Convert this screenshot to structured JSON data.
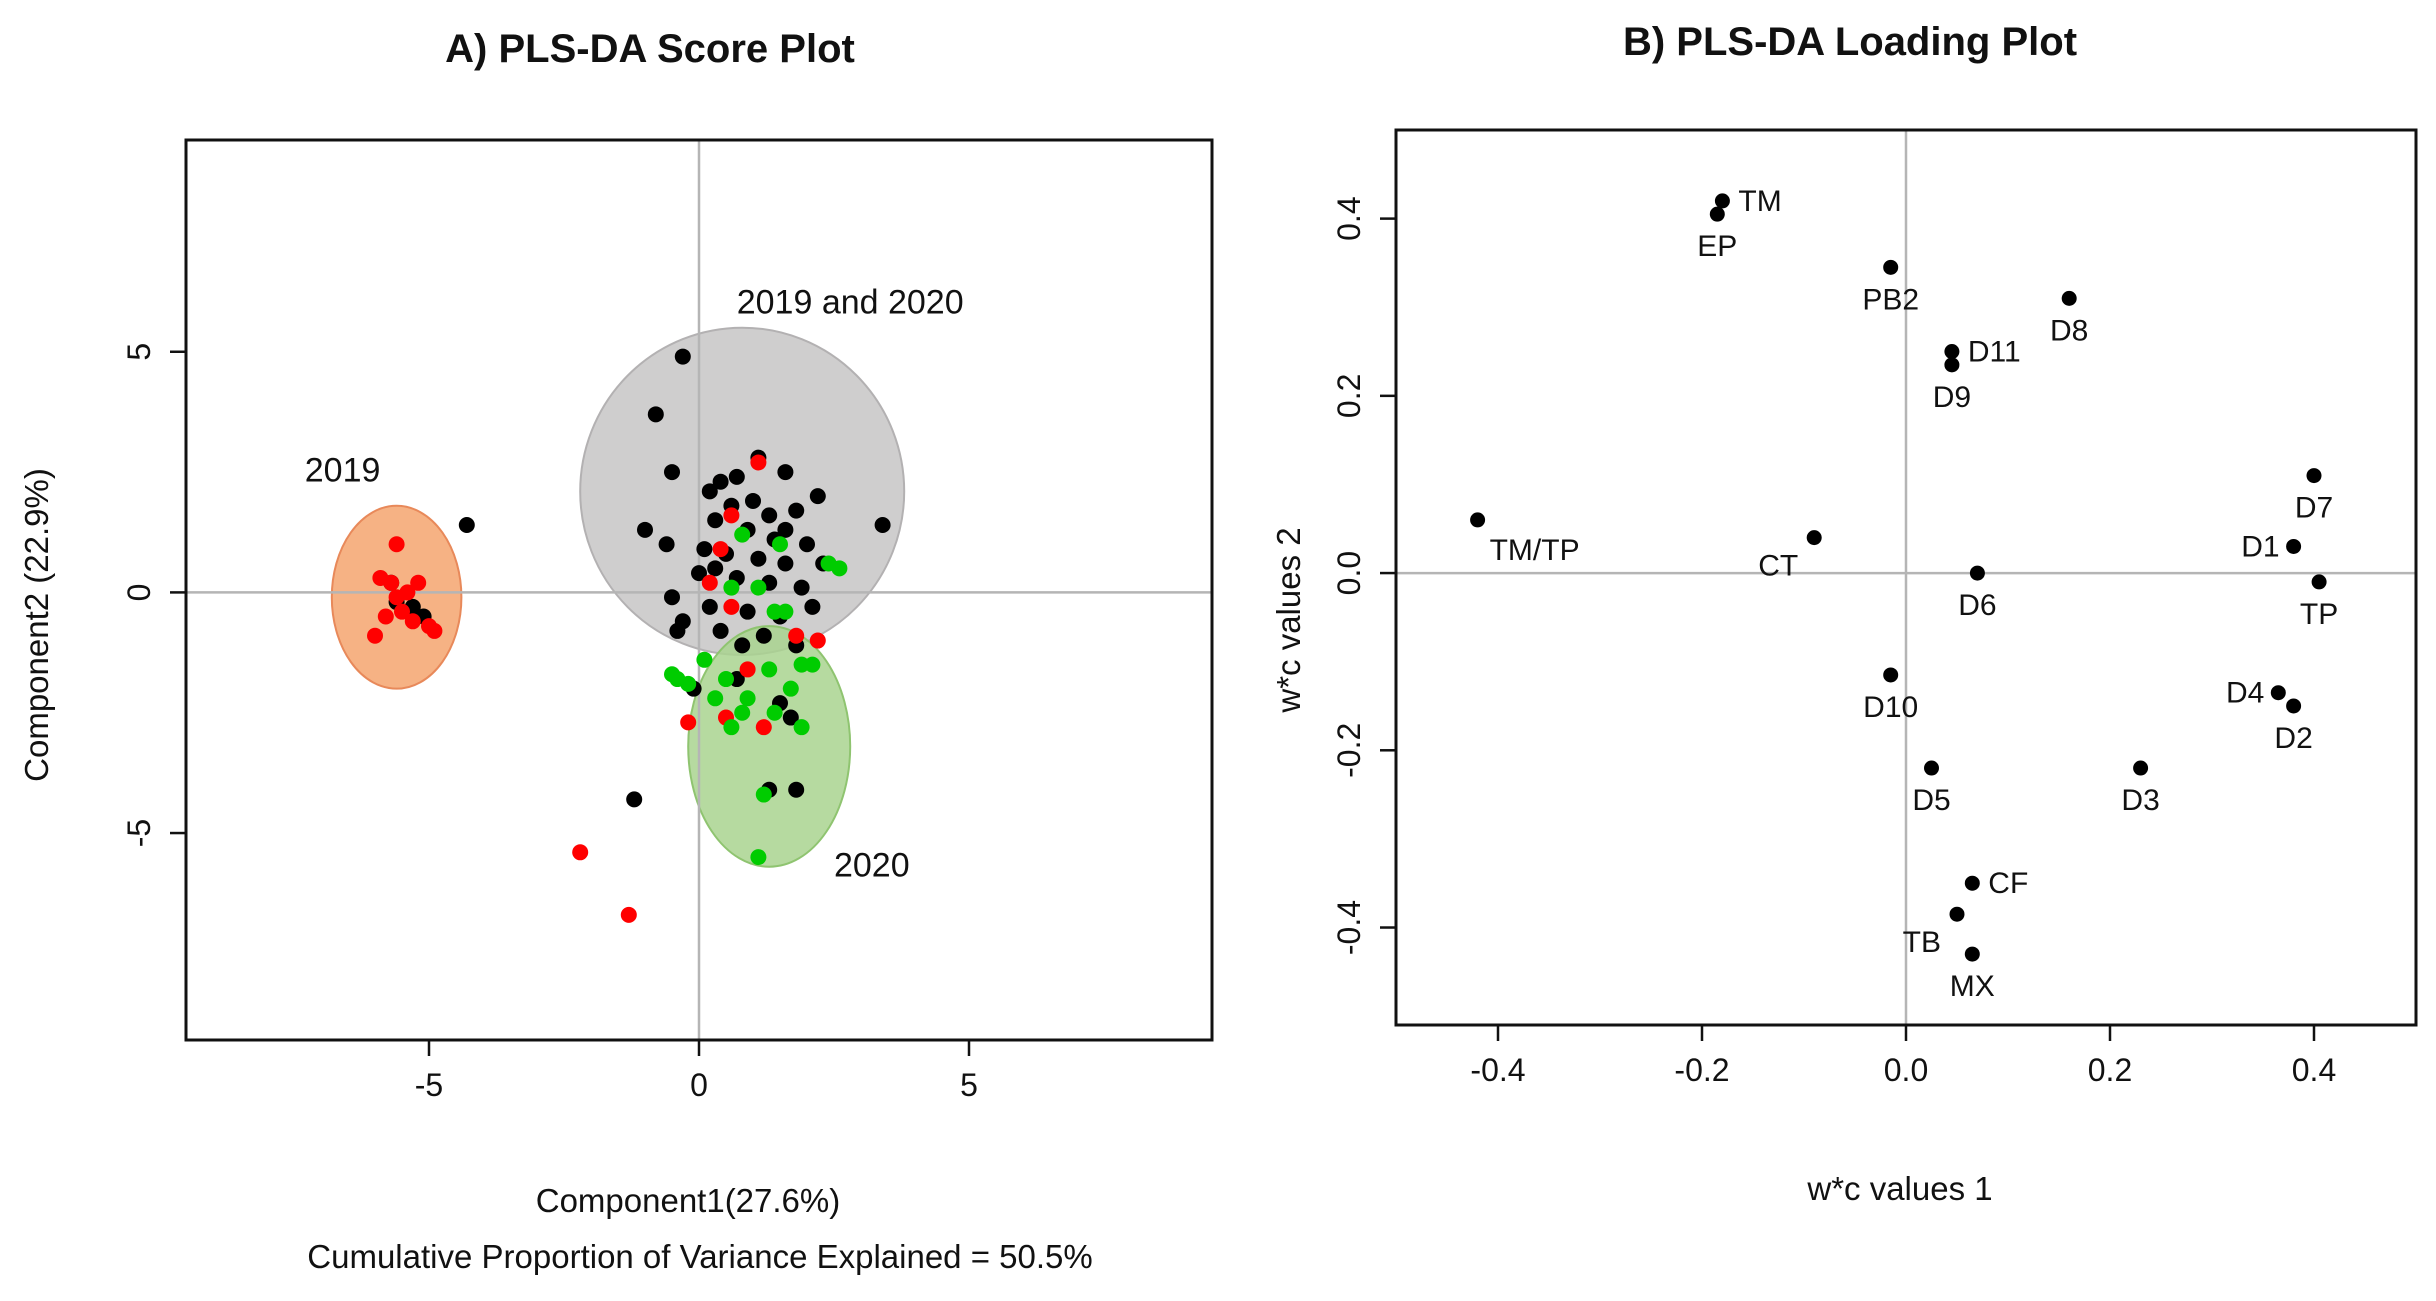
{
  "chart_data": [
    {
      "type": "scatter",
      "panel": "A",
      "title": "A) PLS-DA Score Plot",
      "xlabel": "Component1(27.6%)",
      "ylabel": "Component2 (22.9%)",
      "footnote": "Cumulative Proportion of Variance Explained = 50.5%",
      "xlim": [
        -9.5,
        9.5
      ],
      "ylim": [
        -9.3,
        9.4
      ],
      "xticks": [
        -5,
        0,
        5
      ],
      "yticks": [
        -5,
        0,
        5
      ],
      "colors": {
        "black": "#000000",
        "red": "#ff0000",
        "green": "#00cc00"
      },
      "ellipses": [
        {
          "label": "2019",
          "cx": -5.6,
          "cy": -0.1,
          "rx": 1.2,
          "ry": 1.9,
          "fill": "#f4a46e",
          "stroke": "#e8895a"
        },
        {
          "label": "2019 and 2020",
          "cx": 0.8,
          "cy": 2.1,
          "rx": 3.0,
          "ry": 3.4,
          "fill": "#c7c5c6",
          "stroke": "#b3b1b2"
        },
        {
          "label": "2020",
          "cx": 1.3,
          "cy": -3.2,
          "rx": 1.5,
          "ry": 2.5,
          "fill": "#a9d38f",
          "stroke": "#8fc470"
        }
      ],
      "group_labels": [
        {
          "text": "2019",
          "x": -6.6,
          "y": 2.3
        },
        {
          "text": "2019 and 2020",
          "x": 2.8,
          "y": 5.8
        },
        {
          "text": "2020",
          "x": 3.2,
          "y": -5.9
        }
      ],
      "series": [
        {
          "name": "black",
          "points": [
            [
              -0.3,
              4.9
            ],
            [
              -0.8,
              3.7
            ],
            [
              -0.5,
              2.5
            ],
            [
              0.4,
              2.3
            ],
            [
              0.7,
              2.4
            ],
            [
              1.1,
              2.8
            ],
            [
              1.6,
              2.5
            ],
            [
              0.2,
              2.1
            ],
            [
              0.6,
              1.8
            ],
            [
              1.0,
              1.9
            ],
            [
              1.3,
              1.6
            ],
            [
              1.8,
              1.7
            ],
            [
              2.2,
              2.0
            ],
            [
              0.3,
              1.5
            ],
            [
              0.9,
              1.3
            ],
            [
              1.4,
              1.1
            ],
            [
              2.0,
              1.0
            ],
            [
              -1.0,
              1.3
            ],
            [
              -0.6,
              1.0
            ],
            [
              0.1,
              0.9
            ],
            [
              0.5,
              0.8
            ],
            [
              1.1,
              0.7
            ],
            [
              1.6,
              0.6
            ],
            [
              2.3,
              0.6
            ],
            [
              0.0,
              0.4
            ],
            [
              0.7,
              0.3
            ],
            [
              1.3,
              0.2
            ],
            [
              1.9,
              0.1
            ],
            [
              -0.5,
              -0.1
            ],
            [
              0.2,
              -0.3
            ],
            [
              0.9,
              -0.4
            ],
            [
              1.5,
              -0.5
            ],
            [
              2.1,
              -0.3
            ],
            [
              -0.3,
              -0.6
            ],
            [
              0.4,
              -0.8
            ],
            [
              1.2,
              -0.9
            ],
            [
              1.8,
              -1.1
            ],
            [
              -0.1,
              -2.0
            ],
            [
              0.7,
              -1.8
            ],
            [
              1.5,
              -2.3
            ],
            [
              1.7,
              -2.6
            ],
            [
              1.3,
              -4.1
            ],
            [
              1.8,
              -4.1
            ],
            [
              -1.2,
              -4.3
            ],
            [
              -4.3,
              1.4
            ],
            [
              3.4,
              1.4
            ],
            [
              -0.4,
              -0.8
            ],
            [
              0.3,
              0.5
            ],
            [
              1.6,
              1.3
            ],
            [
              0.8,
              -1.1
            ],
            [
              -5.6,
              -0.2
            ],
            [
              -5.3,
              -0.3
            ],
            [
              -5.1,
              -0.5
            ],
            [
              -5.7,
              0.2
            ]
          ]
        },
        {
          "name": "red",
          "points": [
            [
              -5.6,
              1.0
            ],
            [
              -5.9,
              0.3
            ],
            [
              -5.7,
              0.2
            ],
            [
              -5.4,
              0.0
            ],
            [
              -5.2,
              0.2
            ],
            [
              -5.5,
              -0.4
            ],
            [
              -5.8,
              -0.5
            ],
            [
              -5.3,
              -0.6
            ],
            [
              -5.0,
              -0.7
            ],
            [
              -4.9,
              -0.8
            ],
            [
              -6.0,
              -0.9
            ],
            [
              -5.6,
              -0.1
            ],
            [
              0.6,
              1.6
            ],
            [
              0.4,
              0.9
            ],
            [
              0.2,
              0.2
            ],
            [
              1.1,
              2.7
            ],
            [
              0.6,
              -0.3
            ],
            [
              2.2,
              -1.0
            ],
            [
              1.8,
              -0.9
            ],
            [
              -0.2,
              -2.7
            ],
            [
              0.9,
              -1.6
            ],
            [
              1.2,
              -2.8
            ],
            [
              -2.2,
              -5.4
            ],
            [
              -1.3,
              -6.7
            ],
            [
              0.5,
              -2.6
            ]
          ]
        },
        {
          "name": "green",
          "points": [
            [
              0.8,
              1.2
            ],
            [
              1.5,
              1.0
            ],
            [
              2.4,
              0.6
            ],
            [
              2.6,
              0.5
            ],
            [
              0.6,
              0.1
            ],
            [
              1.1,
              0.1
            ],
            [
              1.4,
              -0.4
            ],
            [
              1.6,
              -0.4
            ],
            [
              0.1,
              -1.4
            ],
            [
              -0.4,
              -1.8
            ],
            [
              -0.2,
              -1.9
            ],
            [
              0.5,
              -1.8
            ],
            [
              1.3,
              -1.6
            ],
            [
              1.9,
              -1.5
            ],
            [
              2.1,
              -1.5
            ],
            [
              0.3,
              -2.2
            ],
            [
              0.8,
              -2.5
            ],
            [
              1.4,
              -2.5
            ],
            [
              1.9,
              -2.8
            ],
            [
              0.6,
              -2.8
            ],
            [
              1.7,
              -2.0
            ],
            [
              1.2,
              -4.2
            ],
            [
              1.1,
              -5.5
            ],
            [
              -0.5,
              -1.7
            ],
            [
              0.9,
              -2.2
            ]
          ]
        }
      ]
    },
    {
      "type": "scatter",
      "panel": "B",
      "title": "B) PLS-DA Loading Plot",
      "xlabel": "w*c values 1",
      "ylabel": "w*c values 2",
      "xlim": [
        -0.5,
        0.5
      ],
      "ylim": [
        -0.51,
        0.5
      ],
      "xticks": [
        -0.4,
        -0.2,
        0.0,
        0.2,
        0.4
      ],
      "xtick_labels": [
        "-0.4",
        "-0.2",
        "0.0",
        "0.2",
        "0.4"
      ],
      "yticks": [
        -0.4,
        -0.2,
        0.0,
        0.2,
        0.4
      ],
      "ytick_labels": [
        "-0.4",
        "-0.2",
        "0.0",
        "0.2",
        "0.4"
      ],
      "point_color": "#000000",
      "points": [
        {
          "label": "TM",
          "x": -0.18,
          "y": 0.42,
          "pos": "right"
        },
        {
          "label": "EP",
          "x": -0.185,
          "y": 0.405,
          "pos": "below"
        },
        {
          "label": "PB2",
          "x": -0.015,
          "y": 0.345,
          "pos": "below"
        },
        {
          "label": "D8",
          "x": 0.16,
          "y": 0.31,
          "pos": "below"
        },
        {
          "label": "D11",
          "x": 0.045,
          "y": 0.25,
          "pos": "right"
        },
        {
          "label": "D9",
          "x": 0.045,
          "y": 0.235,
          "pos": "below"
        },
        {
          "label": "TM/TP",
          "x": -0.42,
          "y": 0.06,
          "pos": "belowright"
        },
        {
          "label": "CT",
          "x": -0.09,
          "y": 0.04,
          "pos": "belowleft"
        },
        {
          "label": "D6",
          "x": 0.07,
          "y": 0.0,
          "pos": "below"
        },
        {
          "label": "D7",
          "x": 0.4,
          "y": 0.11,
          "pos": "below"
        },
        {
          "label": "D1",
          "x": 0.38,
          "y": 0.03,
          "pos": "left"
        },
        {
          "label": "TP",
          "x": 0.405,
          "y": -0.01,
          "pos": "below"
        },
        {
          "label": "D10",
          "x": -0.015,
          "y": -0.115,
          "pos": "below"
        },
        {
          "label": "D4",
          "x": 0.365,
          "y": -0.135,
          "pos": "left"
        },
        {
          "label": "D2",
          "x": 0.38,
          "y": -0.15,
          "pos": "below"
        },
        {
          "label": "D5",
          "x": 0.025,
          "y": -0.22,
          "pos": "below"
        },
        {
          "label": "D3",
          "x": 0.23,
          "y": -0.22,
          "pos": "below"
        },
        {
          "label": "CF",
          "x": 0.065,
          "y": -0.35,
          "pos": "right"
        },
        {
          "label": "TB",
          "x": 0.05,
          "y": -0.385,
          "pos": "belowleft"
        },
        {
          "label": "MX",
          "x": 0.065,
          "y": -0.43,
          "pos": "below"
        }
      ]
    }
  ]
}
